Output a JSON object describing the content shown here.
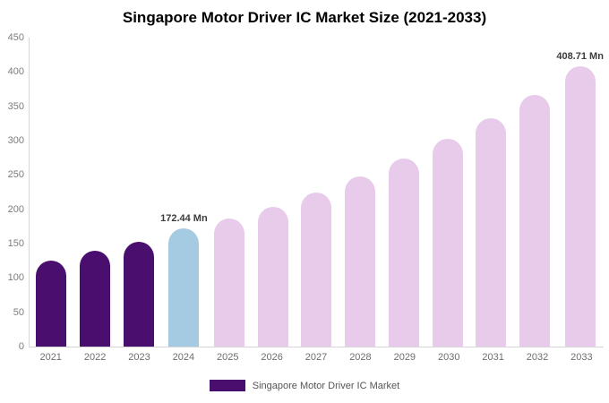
{
  "title": "Singapore Motor Driver IC Market Size (2021-2033)",
  "legend": {
    "label": "Singapore Motor Driver IC Market",
    "color": "#4a0f6e"
  },
  "chart_data": {
    "type": "bar",
    "title": "Singapore Motor Driver IC Market Size (2021-2033)",
    "xlabel": "",
    "ylabel": "",
    "ylim": [
      0,
      450
    ],
    "yticks": [
      0,
      50,
      100,
      150,
      200,
      250,
      300,
      350,
      400,
      450
    ],
    "categories": [
      "2021",
      "2022",
      "2023",
      "2024",
      "2025",
      "2026",
      "2027",
      "2028",
      "2029",
      "2030",
      "2031",
      "2032",
      "2033"
    ],
    "values": [
      125,
      139,
      153,
      172.44,
      187,
      204,
      225,
      248,
      274,
      302,
      333,
      367,
      408.71
    ],
    "bar_colors": [
      "#4a0f6e",
      "#4a0f6e",
      "#4a0f6e",
      "#a4cbe1",
      "#e8caeb",
      "#e8caeb",
      "#e8caeb",
      "#e8caeb",
      "#e8caeb",
      "#e8caeb",
      "#e8caeb",
      "#e8caeb",
      "#e8caeb"
    ],
    "value_labels": {
      "2024": "172.44 Mn",
      "2033": "408.71 Mn"
    },
    "grid": "off",
    "legend_position": "bottom-center"
  }
}
